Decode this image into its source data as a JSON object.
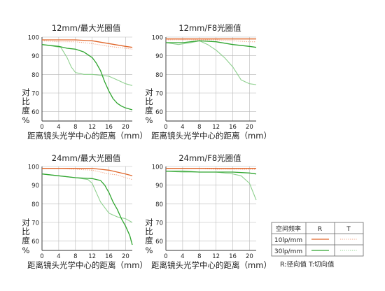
{
  "colors": {
    "r10": "#e0662a",
    "t10": "#f2a585",
    "r30": "#2fa52f",
    "t30": "#8fd08f",
    "grid": "#b8b8b8",
    "axis": "#333333"
  },
  "legend": {
    "header": [
      "空间频率",
      "R",
      "T"
    ],
    "rows": [
      "10lp/mm",
      "30lp/mm"
    ],
    "note": "R:径向值  T:切向值"
  },
  "chart_data": [
    {
      "type": "line",
      "title": "12mm/最大光圈值",
      "xlabel": "距离镜头光学中心的距离（mm）",
      "ylabel_chars": [
        "对",
        "比",
        "度"
      ],
      "ylabel_unit": "%",
      "xticks": [
        0,
        4,
        8,
        12,
        16,
        20
      ],
      "yticks": [
        60,
        70,
        80,
        90,
        100
      ],
      "xlim": [
        0,
        21.6
      ],
      "ylim": [
        55,
        100
      ],
      "grid": true,
      "series": [
        {
          "key": "r10",
          "style": "solid",
          "points": [
            [
              0,
              98.5
            ],
            [
              4,
              98.5
            ],
            [
              8,
              98.5
            ],
            [
              12,
              98
            ],
            [
              16,
              96.5
            ],
            [
              20,
              95
            ],
            [
              21.6,
              94.5
            ]
          ]
        },
        {
          "key": "t10",
          "style": "dotted",
          "points": [
            [
              0,
              98
            ],
            [
              4,
              97.5
            ],
            [
              8,
              97.5
            ],
            [
              12,
              96.5
            ],
            [
              16,
              95
            ],
            [
              20,
              94
            ],
            [
              21.6,
              93.5
            ]
          ]
        },
        {
          "key": "r30",
          "style": "solid",
          "points": [
            [
              0,
              96
            ],
            [
              2,
              95.5
            ],
            [
              4,
              95
            ],
            [
              6,
              94
            ],
            [
              8,
              93.5
            ],
            [
              10,
              92
            ],
            [
              12,
              89
            ],
            [
              13,
              86
            ],
            [
              14,
              82
            ],
            [
              15,
              76
            ],
            [
              16,
              71
            ],
            [
              17,
              67
            ],
            [
              18,
              64.5
            ],
            [
              19,
              63
            ],
            [
              20,
              62
            ],
            [
              21.6,
              61
            ]
          ]
        },
        {
          "key": "t30",
          "style": "solid-light",
          "points": [
            [
              0,
              96
            ],
            [
              1.5,
              95.5
            ],
            [
              3,
              95
            ],
            [
              4.5,
              94.5
            ],
            [
              6,
              89
            ],
            [
              7,
              84
            ],
            [
              8,
              81
            ],
            [
              10,
              80
            ],
            [
              12,
              80
            ],
            [
              14,
              79.5
            ],
            [
              16,
              79
            ],
            [
              18,
              77
            ],
            [
              20,
              75
            ],
            [
              21.6,
              74
            ]
          ]
        }
      ]
    },
    {
      "type": "line",
      "title": "12mm/F8光圈值",
      "xlabel": "距离镜头光学中心的距离（mm）",
      "ylabel_chars": [
        "对",
        "比",
        "度"
      ],
      "ylabel_unit": "%",
      "xticks": [
        0,
        4,
        8,
        12,
        16,
        20
      ],
      "yticks": [
        60,
        70,
        80,
        90,
        100
      ],
      "xlim": [
        0,
        21.6
      ],
      "ylim": [
        55,
        100
      ],
      "grid": true,
      "series": [
        {
          "key": "r10",
          "style": "solid",
          "points": [
            [
              0,
              99
            ],
            [
              4,
              99
            ],
            [
              8,
              99
            ],
            [
              12,
              99
            ],
            [
              16,
              99
            ],
            [
              20,
              99
            ],
            [
              21.6,
              99
            ]
          ]
        },
        {
          "key": "t10",
          "style": "dotted",
          "points": [
            [
              0,
              98.5
            ],
            [
              4,
              98.5
            ],
            [
              8,
              98.5
            ],
            [
              12,
              98.5
            ],
            [
              16,
              98
            ],
            [
              20,
              97.5
            ],
            [
              21.6,
              97.5
            ]
          ]
        },
        {
          "key": "r30",
          "style": "solid",
          "points": [
            [
              0,
              97
            ],
            [
              4,
              97
            ],
            [
              8,
              98
            ],
            [
              12,
              97.5
            ],
            [
              16,
              96
            ],
            [
              20,
              95
            ],
            [
              21.6,
              94.5
            ]
          ]
        },
        {
          "key": "t30",
          "style": "solid-light",
          "points": [
            [
              0,
              97
            ],
            [
              3,
              96
            ],
            [
              6,
              97
            ],
            [
              8,
              98
            ],
            [
              10,
              96
            ],
            [
              12,
              93
            ],
            [
              14,
              89
            ],
            [
              16,
              84
            ],
            [
              18,
              77
            ],
            [
              20,
              75
            ],
            [
              21.6,
              74.5
            ]
          ]
        }
      ]
    },
    {
      "type": "line",
      "title": "24mm/最大光圈值",
      "xlabel": "距离镜头光学中心的距离（mm）",
      "ylabel_chars": [
        "对",
        "比",
        "度"
      ],
      "ylabel_unit": "%",
      "xticks": [
        0,
        4,
        8,
        12,
        16,
        20
      ],
      "yticks": [
        60,
        70,
        80,
        90,
        100
      ],
      "xlim": [
        0,
        21.6
      ],
      "ylim": [
        55,
        100
      ],
      "grid": true,
      "series": [
        {
          "key": "r10",
          "style": "solid",
          "points": [
            [
              0,
              99
            ],
            [
              4,
              99
            ],
            [
              8,
              99
            ],
            [
              12,
              99
            ],
            [
              14,
              98.5
            ],
            [
              16,
              98
            ],
            [
              18,
              97
            ],
            [
              20,
              96
            ],
            [
              21.6,
              95
            ]
          ]
        },
        {
          "key": "t10",
          "style": "dotted",
          "points": [
            [
              0,
              99
            ],
            [
              4,
              99
            ],
            [
              8,
              98.5
            ],
            [
              12,
              98
            ],
            [
              14,
              97
            ],
            [
              16,
              96
            ],
            [
              18,
              95.5
            ],
            [
              20,
              94
            ],
            [
              21.6,
              93
            ]
          ]
        },
        {
          "key": "r30",
          "style": "solid",
          "points": [
            [
              0,
              96
            ],
            [
              4,
              95
            ],
            [
              8,
              94
            ],
            [
              12,
              93.5
            ],
            [
              14,
              92.5
            ],
            [
              15,
              90
            ],
            [
              16,
              86
            ],
            [
              17,
              81
            ],
            [
              18,
              77
            ],
            [
              19,
              72
            ],
            [
              20,
              68
            ],
            [
              21,
              63
            ],
            [
              21.6,
              58
            ]
          ]
        },
        {
          "key": "t30",
          "style": "solid-light",
          "points": [
            [
              0,
              96
            ],
            [
              4,
              95
            ],
            [
              8,
              94
            ],
            [
              11,
              93
            ],
            [
              12,
              91
            ],
            [
              13,
              86
            ],
            [
              14,
              81
            ],
            [
              16,
              75
            ],
            [
              18,
              73
            ],
            [
              20,
              72
            ],
            [
              21.6,
              70
            ]
          ]
        }
      ]
    },
    {
      "type": "line",
      "title": "24mm/F8光圈值",
      "xlabel": "距离镜头光学中心的距离（mm）",
      "ylabel_chars": [
        "对",
        "比",
        "度"
      ],
      "ylabel_unit": "%",
      "xticks": [
        0,
        4,
        8,
        12,
        16,
        20
      ],
      "yticks": [
        60,
        70,
        80,
        90,
        100
      ],
      "xlim": [
        0,
        21.6
      ],
      "ylim": [
        55,
        100
      ],
      "grid": true,
      "series": [
        {
          "key": "r10",
          "style": "solid",
          "points": [
            [
              0,
              99
            ],
            [
              4,
              99
            ],
            [
              8,
              99
            ],
            [
              12,
              99
            ],
            [
              16,
              99
            ],
            [
              20,
              99
            ],
            [
              21.6,
              99
            ]
          ]
        },
        {
          "key": "t10",
          "style": "dotted",
          "points": [
            [
              0,
              99
            ],
            [
              4,
              99
            ],
            [
              8,
              99
            ],
            [
              12,
              98.5
            ],
            [
              16,
              98.5
            ],
            [
              20,
              98.5
            ],
            [
              21.6,
              98.5
            ]
          ]
        },
        {
          "key": "r30",
          "style": "solid",
          "points": [
            [
              0,
              97.5
            ],
            [
              4,
              97.5
            ],
            [
              8,
              97
            ],
            [
              12,
              97
            ],
            [
              16,
              97
            ],
            [
              20,
              96.5
            ],
            [
              21.6,
              96
            ]
          ]
        },
        {
          "key": "t30",
          "style": "solid-light",
          "points": [
            [
              0,
              97.5
            ],
            [
              4,
              97
            ],
            [
              8,
              97
            ],
            [
              12,
              97
            ],
            [
              16,
              96
            ],
            [
              18,
              95
            ],
            [
              20,
              91
            ],
            [
              21.6,
              82
            ]
          ]
        }
      ]
    }
  ]
}
